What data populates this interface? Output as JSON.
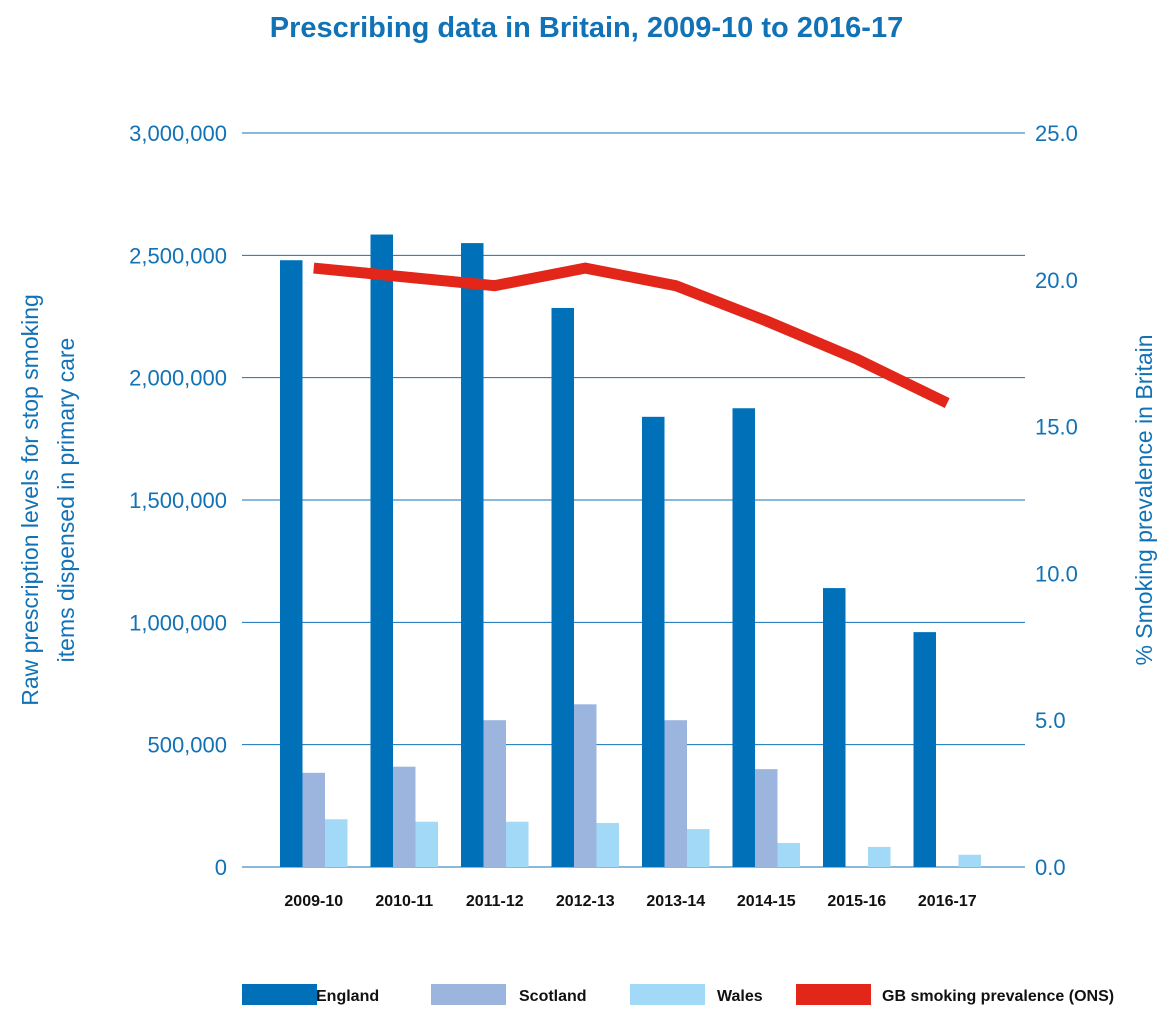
{
  "chart_data": {
    "type": "bar",
    "title": "Prescribing data in Britain, 2009-10 to 2016-17",
    "categories": [
      "2009-10",
      "2010-11",
      "2011-12",
      "2012-13",
      "2013-14",
      "2014-15",
      "2015-16",
      "2016-17"
    ],
    "series": [
      {
        "name": "England",
        "type": "bar",
        "axis": "left",
        "color": "#0071b9",
        "values": [
          2480000,
          2585000,
          2550000,
          2285000,
          1840000,
          1875000,
          1140000,
          960000
        ]
      },
      {
        "name": "Scotland",
        "type": "bar",
        "axis": "left",
        "color": "#9cb5df",
        "values": [
          385000,
          410000,
          600000,
          665000,
          600000,
          400000,
          0,
          0
        ]
      },
      {
        "name": "Wales",
        "type": "bar",
        "axis": "left",
        "color": "#a2d9f6",
        "values": [
          195000,
          185000,
          185000,
          180000,
          155000,
          98000,
          82000,
          50000
        ]
      },
      {
        "name": "GB smoking prevalence (ONS)",
        "type": "line",
        "axis": "right",
        "color": "#e3261a",
        "values": [
          20.4,
          20.1,
          19.8,
          20.4,
          19.8,
          18.6,
          17.3,
          15.8
        ]
      }
    ],
    "y_left": {
      "label": "Raw prescription levels for stop smoking items dispensed in primary care",
      "label_lines": [
        "Raw prescription levels for stop smoking",
        "items dispensed in primary care"
      ],
      "range": [
        0,
        3000000
      ],
      "ticks": [
        0,
        500000,
        1000000,
        1500000,
        2000000,
        2500000,
        3000000
      ],
      "tick_labels": [
        "0",
        "500,000",
        "1,000,000",
        "1,500,000",
        "2,000,000",
        "2,500,000",
        "3,000,000"
      ]
    },
    "y_right": {
      "label": "% Smoking prevalence in Britain",
      "range": [
        0,
        25
      ],
      "ticks": [
        0,
        5,
        10,
        15,
        20,
        25
      ],
      "tick_labels": [
        "0.0",
        "5.0",
        "10.0",
        "15.0",
        "20.0",
        "25.0"
      ]
    },
    "grid": true,
    "legend_position": "bottom-right",
    "colors": {
      "text": "#1172b6",
      "grid": "#1172b6"
    }
  }
}
